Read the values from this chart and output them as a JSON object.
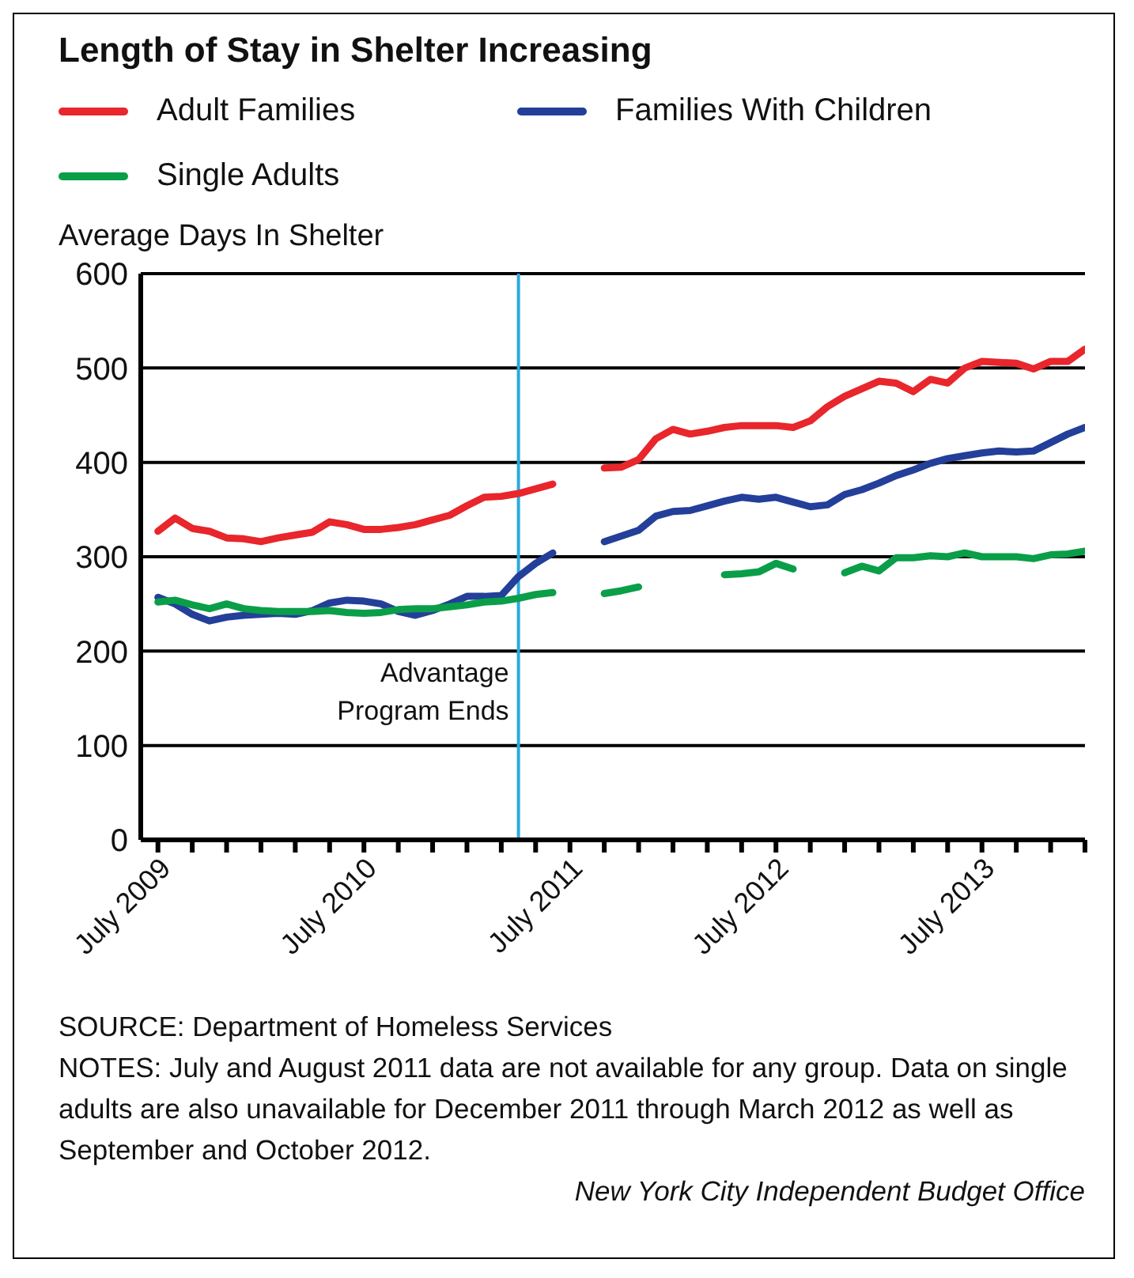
{
  "chart_data": {
    "type": "line",
    "title": "Length of Stay in Shelter Increasing",
    "ylabel": "Average Days In Shelter",
    "x": [
      "2009-07",
      "2009-08",
      "2009-09",
      "2009-10",
      "2009-11",
      "2009-12",
      "2010-01",
      "2010-02",
      "2010-03",
      "2010-04",
      "2010-05",
      "2010-06",
      "2010-07",
      "2010-08",
      "2010-09",
      "2010-10",
      "2010-11",
      "2010-12",
      "2011-01",
      "2011-02",
      "2011-03",
      "2011-04",
      "2011-05",
      "2011-06",
      "2011-07",
      "2011-08",
      "2011-09",
      "2011-10",
      "2011-11",
      "2011-12",
      "2012-01",
      "2012-02",
      "2012-03",
      "2012-04",
      "2012-05",
      "2012-06",
      "2012-07",
      "2012-08",
      "2012-09",
      "2012-10",
      "2012-11",
      "2012-12",
      "2013-01",
      "2013-02",
      "2013-03",
      "2013-04",
      "2013-05",
      "2013-06",
      "2013-07",
      "2013-08",
      "2013-09",
      "2013-10",
      "2013-11",
      "2013-12",
      "2014-01"
    ],
    "series": [
      {
        "name": "Adult Families",
        "color": "#e8262b",
        "values": [
          327,
          341,
          330,
          327,
          320,
          319,
          316,
          320,
          323,
          326,
          337,
          334,
          329,
          329,
          331,
          334,
          339,
          344,
          354,
          363,
          364,
          367,
          372,
          377,
          null,
          null,
          394,
          395,
          403,
          425,
          435,
          430,
          433,
          437,
          439,
          439,
          439,
          437,
          444,
          459,
          470,
          478,
          486,
          484,
          475,
          488,
          484,
          500,
          507,
          506,
          505,
          499,
          507,
          507,
          520
        ]
      },
      {
        "name": "Families With Children",
        "color": "#233f99",
        "values": [
          257,
          250,
          239,
          232,
          236,
          238,
          239,
          240,
          239,
          243,
          251,
          254,
          253,
          250,
          242,
          238,
          243,
          250,
          258,
          258,
          259,
          279,
          293,
          304,
          null,
          null,
          316,
          322,
          328,
          343,
          348,
          349,
          354,
          359,
          363,
          361,
          363,
          358,
          353,
          355,
          366,
          371,
          378,
          386,
          392,
          399,
          404,
          407,
          410,
          412,
          411,
          412,
          421,
          430,
          437
        ]
      },
      {
        "name": "Single Adults",
        "color": "#0a9e48",
        "values": [
          252,
          254,
          249,
          245,
          250,
          245,
          243,
          242,
          242,
          242,
          243,
          241,
          240,
          241,
          244,
          245,
          245,
          247,
          249,
          252,
          253,
          256,
          260,
          262,
          null,
          null,
          261,
          264,
          268,
          null,
          null,
          null,
          null,
          281,
          282,
          284,
          293,
          287,
          null,
          null,
          283,
          290,
          285,
          299,
          299,
          301,
          300,
          304,
          300,
          300,
          300,
          298,
          302,
          303,
          306
        ]
      }
    ],
    "xlim": [
      "2009-06",
      "2014-01"
    ],
    "xticks": [
      {
        "value": "2009-07",
        "label": "July 2009"
      },
      {
        "value": "2009-09",
        "label": null
      },
      {
        "value": "2009-11",
        "label": null
      },
      {
        "value": "2010-01",
        "label": null
      },
      {
        "value": "2010-03",
        "label": null
      },
      {
        "value": "2010-05",
        "label": null
      },
      {
        "value": "2010-07",
        "label": "July 2010"
      },
      {
        "value": "2010-09",
        "label": null
      },
      {
        "value": "2010-11",
        "label": null
      },
      {
        "value": "2011-01",
        "label": null
      },
      {
        "value": "2011-03",
        "label": null
      },
      {
        "value": "2011-05",
        "label": null
      },
      {
        "value": "2011-07",
        "label": "July 2011"
      },
      {
        "value": "2011-09",
        "label": null
      },
      {
        "value": "2011-11",
        "label": null
      },
      {
        "value": "2012-01",
        "label": null
      },
      {
        "value": "2012-03",
        "label": null
      },
      {
        "value": "2012-05",
        "label": null
      },
      {
        "value": "2012-07",
        "label": "July 2012"
      },
      {
        "value": "2012-09",
        "label": null
      },
      {
        "value": "2012-11",
        "label": null
      },
      {
        "value": "2013-01",
        "label": null
      },
      {
        "value": "2013-03",
        "label": null
      },
      {
        "value": "2013-05",
        "label": null
      },
      {
        "value": "2013-07",
        "label": "July 2013"
      },
      {
        "value": "2013-09",
        "label": null
      },
      {
        "value": "2013-11",
        "label": null
      },
      {
        "value": "2014-01",
        "label": null
      }
    ],
    "ylim": [
      0,
      600
    ],
    "yticks": [
      0,
      100,
      200,
      300,
      400,
      500,
      600
    ],
    "grid": "y",
    "legend": "top left",
    "ref_lines": [
      {
        "axis": "x",
        "value": "2011-04",
        "label": "Advantage Program Ends",
        "color": "#29a9e0"
      }
    ],
    "annotations": [
      "SOURCE: Department of Homeless Services",
      "NOTES: July and August 2011 data are not available for any group. Data on single adults are also unavailable for December 2011 through March 2012 as well as September and October 2012.",
      "New York City Independent Budget Office"
    ]
  }
}
